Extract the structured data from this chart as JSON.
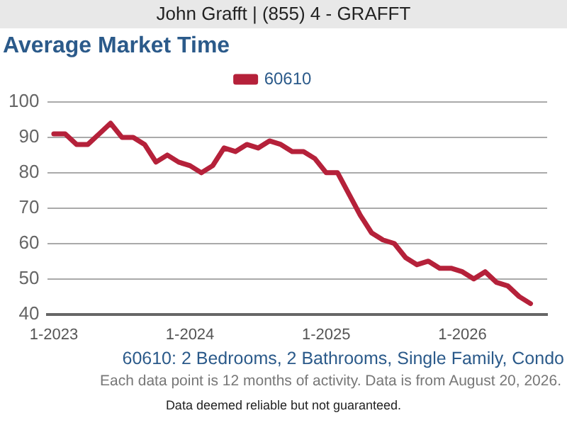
{
  "chart_data": {
    "type": "line",
    "title": "Average Market Time",
    "annotations": [
      "John Grafft | (855) 4 - GRAFFT",
      "60610: 2 Bedrooms, 2 Bathrooms, Single Family, Condo",
      "Each data point is 12 months of activity. Data is from August 20, 2026.",
      "Data deemed reliable but not guaranteed."
    ],
    "x": [
      "2023-01",
      "2023-02",
      "2023-03",
      "2023-04",
      "2023-05",
      "2023-06",
      "2023-07",
      "2023-08",
      "2023-09",
      "2023-10",
      "2023-11",
      "2023-12",
      "2024-01",
      "2024-02",
      "2024-03",
      "2024-04",
      "2024-05",
      "2024-06",
      "2024-07",
      "2024-08",
      "2024-09",
      "2024-10",
      "2024-11",
      "2024-12",
      "2025-01",
      "2025-02",
      "2025-03",
      "2025-04",
      "2025-05",
      "2025-06",
      "2025-07",
      "2025-08",
      "2025-09",
      "2025-10",
      "2025-11",
      "2025-12",
      "2026-01",
      "2026-02",
      "2026-03",
      "2026-04",
      "2026-05",
      "2026-06",
      "2026-07"
    ],
    "series": [
      {
        "name": "60610",
        "color": "#b5213a",
        "values": [
          91,
          91,
          88,
          88,
          91,
          94,
          90,
          90,
          88,
          83,
          85,
          83,
          82,
          80,
          82,
          87,
          86,
          88,
          87,
          89,
          88,
          86,
          86,
          84,
          80,
          80,
          74,
          68,
          63,
          61,
          60,
          56,
          54,
          55,
          53,
          53,
          52,
          50,
          52,
          49,
          48,
          45,
          43
        ]
      }
    ],
    "xlim": [
      "2022-12-15",
      "2026-08-15"
    ],
    "xticks": [
      {
        "value": "2023-01",
        "label": "1-2023"
      },
      {
        "value": "2024-01",
        "label": "1-2024"
      },
      {
        "value": "2025-01",
        "label": "1-2025"
      },
      {
        "value": "2026-01",
        "label": "1-2026"
      }
    ],
    "ylim": [
      40,
      100
    ],
    "yticks": [
      40,
      50,
      60,
      70,
      80,
      90,
      100
    ],
    "grid": "y",
    "legend": "top",
    "marker": "none",
    "line_style": "solid"
  }
}
